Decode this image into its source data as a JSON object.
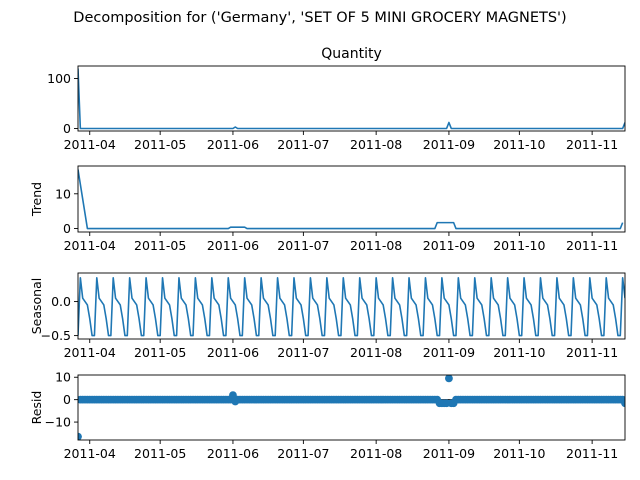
{
  "figure": {
    "suptitle": "Decomposition for ('Germany', 'SET OF 5 MINI GROCERY MAGNETS')",
    "line_color": "#1f77b4"
  },
  "chart_data": [
    {
      "type": "line",
      "panel": "observed",
      "title": "Quantity",
      "ylabel": "",
      "ylim": [
        -5,
        125
      ],
      "yticks": [
        0,
        100
      ],
      "xlim": [
        "2011-03-27",
        "2011-11-15"
      ],
      "xticks": [
        "2011-04",
        "2011-05",
        "2011-06",
        "2011-07",
        "2011-08",
        "2011-09",
        "2011-10",
        "2011-11"
      ],
      "x_start": "2011-03-27",
      "x_end": "2011-11-15",
      "baseline": 0,
      "points": [
        {
          "x": "2011-03-27",
          "y": 120
        },
        {
          "x": "2011-03-28",
          "y": 0
        },
        {
          "x": "2011-06-01",
          "y": 0
        },
        {
          "x": "2011-06-02",
          "y": 3
        },
        {
          "x": "2011-06-03",
          "y": 0
        },
        {
          "x": "2011-08-31",
          "y": 0
        },
        {
          "x": "2011-09-01",
          "y": 12
        },
        {
          "x": "2011-09-02",
          "y": 0
        },
        {
          "x": "2011-11-14",
          "y": 0
        },
        {
          "x": "2011-11-15",
          "y": 12
        }
      ]
    },
    {
      "type": "line",
      "panel": "trend",
      "title": "",
      "ylabel": "Trend",
      "ylim": [
        -1,
        18
      ],
      "yticks": [
        0,
        10
      ],
      "xlim": [
        "2011-03-27",
        "2011-11-15"
      ],
      "xticks": [
        "2011-04",
        "2011-05",
        "2011-06",
        "2011-07",
        "2011-08",
        "2011-09",
        "2011-10",
        "2011-11"
      ],
      "points": [
        {
          "x": "2011-03-27",
          "y": 17
        },
        {
          "x": "2011-03-31",
          "y": 0
        },
        {
          "x": "2011-05-30",
          "y": 0
        },
        {
          "x": "2011-05-31",
          "y": 0.4
        },
        {
          "x": "2011-06-06",
          "y": 0.4
        },
        {
          "x": "2011-06-07",
          "y": 0
        },
        {
          "x": "2011-08-26",
          "y": 0
        },
        {
          "x": "2011-08-27",
          "y": 1.7
        },
        {
          "x": "2011-09-03",
          "y": 1.7
        },
        {
          "x": "2011-09-04",
          "y": 0
        },
        {
          "x": "2011-11-13",
          "y": 0
        },
        {
          "x": "2011-11-14",
          "y": 1.7
        }
      ]
    },
    {
      "type": "line",
      "panel": "seasonal",
      "title": "",
      "ylabel": "Seasonal",
      "ylim": [
        -0.55,
        0.42
      ],
      "yticks": [
        -0.5,
        0.0
      ],
      "ytick_labels": [
        "−0.5",
        "0.0"
      ],
      "xlim": [
        "2011-03-27",
        "2011-11-15"
      ],
      "xticks": [
        "2011-04",
        "2011-05",
        "2011-06",
        "2011-07",
        "2011-08",
        "2011-09",
        "2011-10",
        "2011-11"
      ],
      "period_days": 7,
      "cycle_start": "2011-03-27",
      "cycle_values": [
        -0.5,
        0.35,
        0.05,
        0.0,
        -0.05,
        -0.25,
        -0.5
      ]
    },
    {
      "type": "scatter",
      "panel": "resid",
      "title": "",
      "ylabel": "Resid",
      "ylim": [
        -18,
        11
      ],
      "yticks": [
        -10,
        0,
        10
      ],
      "ytick_labels": [
        "−10",
        "0",
        "10"
      ],
      "xlim": [
        "2011-03-27",
        "2011-11-15"
      ],
      "xticks": [
        "2011-04",
        "2011-05",
        "2011-06",
        "2011-07",
        "2011-08",
        "2011-09",
        "2011-10",
        "2011-11"
      ],
      "baseline": 0,
      "x_start": "2011-03-28",
      "x_end": "2011-11-14",
      "points": [
        {
          "x": "2011-03-27",
          "y": -16.5
        },
        {
          "x": "2011-06-01",
          "y": 2.0
        },
        {
          "x": "2011-06-02",
          "y": -0.8
        },
        {
          "x": "2011-08-28",
          "y": -1.6
        },
        {
          "x": "2011-08-29",
          "y": -1.6
        },
        {
          "x": "2011-08-30",
          "y": -1.6
        },
        {
          "x": "2011-08-31",
          "y": -1.6
        },
        {
          "x": "2011-09-01",
          "y": 9.5
        },
        {
          "x": "2011-09-02",
          "y": -1.6
        },
        {
          "x": "2011-09-03",
          "y": -1.6
        },
        {
          "x": "2011-11-15",
          "y": -1.6
        }
      ]
    }
  ]
}
